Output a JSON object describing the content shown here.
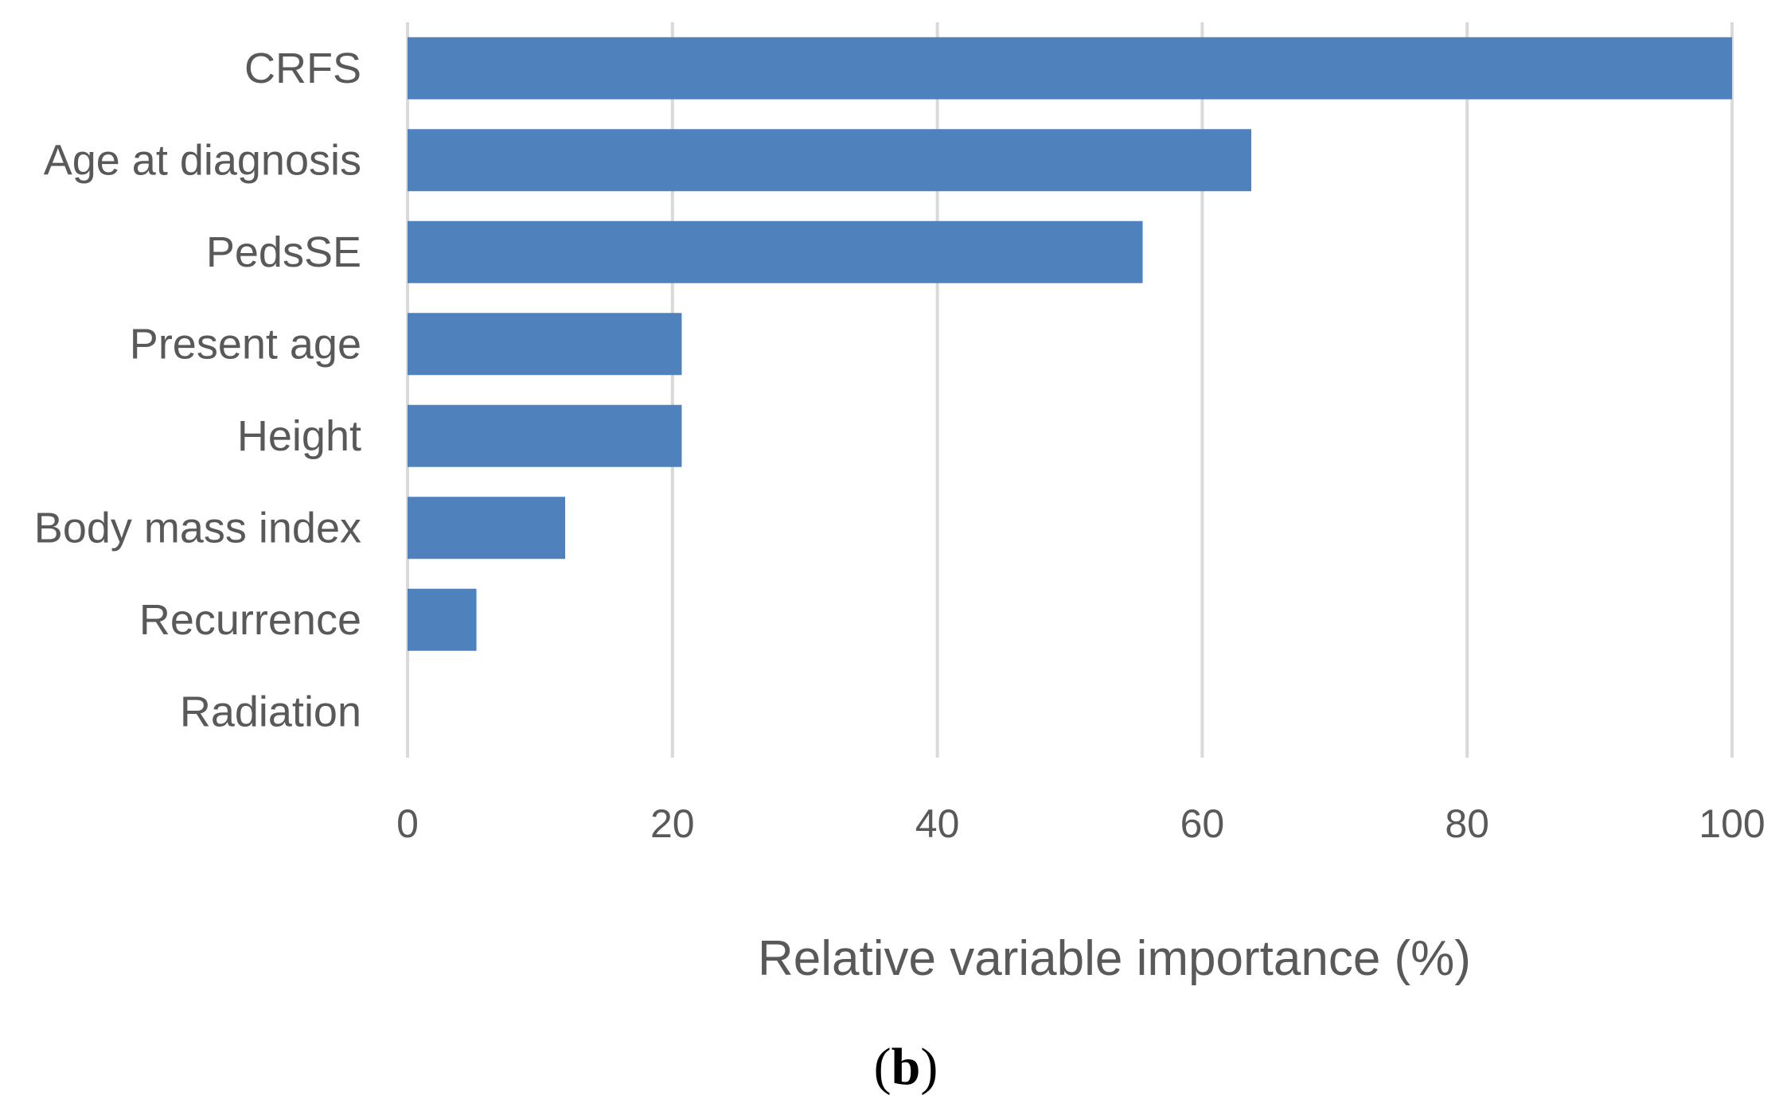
{
  "chart_data": {
    "type": "bar",
    "orientation": "horizontal",
    "categories": [
      "CRFS",
      "Age at diagnosis",
      "PedsSE",
      "Present age",
      "Height",
      "Body mass index",
      "Recurrence",
      "Radiation"
    ],
    "series": [
      {
        "values": [
          100,
          63.7,
          55.5,
          20.7,
          20.7,
          11.9,
          5.2,
          0
        ],
        "color": "#4f81bd"
      }
    ],
    "xlabel": "Relative variable importance (%)",
    "ylabel": "",
    "xlim": [
      0,
      100
    ],
    "xticks": [
      0,
      20,
      40,
      60,
      80,
      100
    ],
    "xtick_labels": [
      "0",
      "20",
      "40",
      "60",
      "80",
      "100"
    ],
    "grid": "vertical",
    "legend": "none"
  },
  "panel_label": {
    "open": "(",
    "letter": "b",
    "close": ")"
  },
  "colors": {
    "bar": "#4f81bd",
    "grid": "#d9d9d9",
    "text": "#595959"
  }
}
